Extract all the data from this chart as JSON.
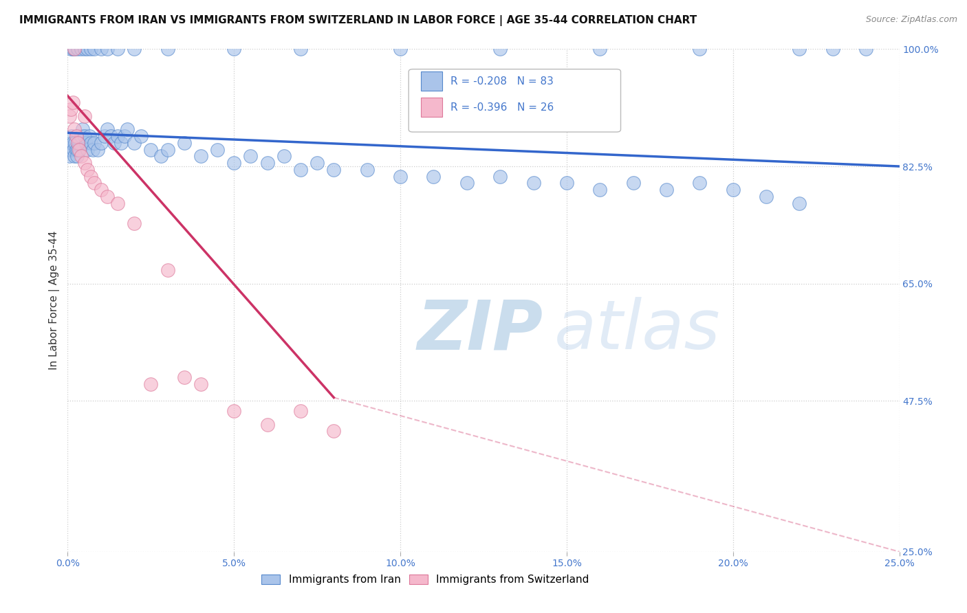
{
  "title": "IMMIGRANTS FROM IRAN VS IMMIGRANTS FROM SWITZERLAND IN LABOR FORCE | AGE 35-44 CORRELATION CHART",
  "source": "Source: ZipAtlas.com",
  "ylabel": "In Labor Force | Age 35-44",
  "x_tick_values": [
    0.0,
    5.0,
    10.0,
    15.0,
    20.0,
    25.0
  ],
  "y_tick_values": [
    25.0,
    47.5,
    65.0,
    82.5,
    100.0
  ],
  "xlim": [
    0.0,
    25.0
  ],
  "ylim": [
    25.0,
    100.0
  ],
  "iran_R": -0.208,
  "iran_N": 83,
  "swiss_R": -0.396,
  "swiss_N": 26,
  "iran_color": "#aac4ea",
  "iran_edge_color": "#5588cc",
  "swiss_color": "#f5b8cc",
  "swiss_edge_color": "#dd7799",
  "iran_line_color": "#3366cc",
  "swiss_line_color": "#cc3366",
  "background_color": "#ffffff",
  "grid_color": "#cccccc",
  "watermark": "ZIPatlas",
  "watermark_color": "#c8d8ee",
  "legend_label_iran": "Immigrants from Iran",
  "legend_label_swiss": "Immigrants from Switzerland",
  "iran_x": [
    0.05,
    0.08,
    0.1,
    0.12,
    0.15,
    0.18,
    0.2,
    0.22,
    0.25,
    0.28,
    0.3,
    0.35,
    0.4,
    0.45,
    0.5,
    0.55,
    0.6,
    0.65,
    0.7,
    0.75,
    0.8,
    0.9,
    1.0,
    1.1,
    1.2,
    1.3,
    1.4,
    1.5,
    1.6,
    1.7,
    1.8,
    2.0,
    2.2,
    2.5,
    2.8,
    3.0,
    3.5,
    4.0,
    4.5,
    5.0,
    5.5,
    6.0,
    6.5,
    7.0,
    7.5,
    8.0,
    9.0,
    10.0,
    11.0,
    12.0,
    13.0,
    14.0,
    15.0,
    16.0,
    17.0,
    18.0,
    19.0,
    20.0,
    21.0,
    22.0,
    0.1,
    0.15,
    0.2,
    0.3,
    0.4,
    0.5,
    0.6,
    0.7,
    0.8,
    1.0,
    1.2,
    1.5,
    2.0,
    3.0,
    5.0,
    7.0,
    10.0,
    13.0,
    16.0,
    19.0,
    22.0,
    23.0,
    24.0
  ],
  "iran_y": [
    84,
    85,
    86,
    87,
    86,
    85,
    84,
    86,
    85,
    84,
    85,
    86,
    87,
    88,
    87,
    86,
    85,
    87,
    86,
    85,
    86,
    85,
    86,
    87,
    88,
    87,
    86,
    87,
    86,
    87,
    88,
    86,
    87,
    85,
    84,
    85,
    86,
    84,
    85,
    83,
    84,
    83,
    84,
    82,
    83,
    82,
    82,
    81,
    81,
    80,
    81,
    80,
    80,
    79,
    80,
    79,
    80,
    79,
    78,
    77,
    100,
    100,
    100,
    100,
    100,
    100,
    100,
    100,
    100,
    100,
    100,
    100,
    100,
    100,
    100,
    100,
    100,
    100,
    100,
    100,
    100,
    100,
    100
  ],
  "swiss_x": [
    0.05,
    0.1,
    0.15,
    0.2,
    0.25,
    0.3,
    0.35,
    0.4,
    0.5,
    0.6,
    0.7,
    0.8,
    1.0,
    1.2,
    1.5,
    2.0,
    2.5,
    3.0,
    3.5,
    4.0,
    5.0,
    6.0,
    7.0,
    8.0,
    0.2,
    0.5
  ],
  "swiss_y": [
    90,
    91,
    92,
    88,
    87,
    86,
    85,
    84,
    83,
    82,
    81,
    80,
    79,
    78,
    77,
    74,
    50,
    67,
    51,
    50,
    46,
    44,
    46,
    43,
    100,
    90
  ],
  "iran_trend_x0": 0.0,
  "iran_trend_y0": 87.5,
  "iran_trend_x1": 25.0,
  "iran_trend_y1": 82.5,
  "swiss_trend_x0": 0.0,
  "swiss_trend_y0": 93.0,
  "swiss_trend_x1": 8.0,
  "swiss_trend_y1": 48.0,
  "swiss_dash_x0": 8.0,
  "swiss_dash_y0": 48.0,
  "swiss_dash_x1": 25.0,
  "swiss_dash_y1": 25.0
}
